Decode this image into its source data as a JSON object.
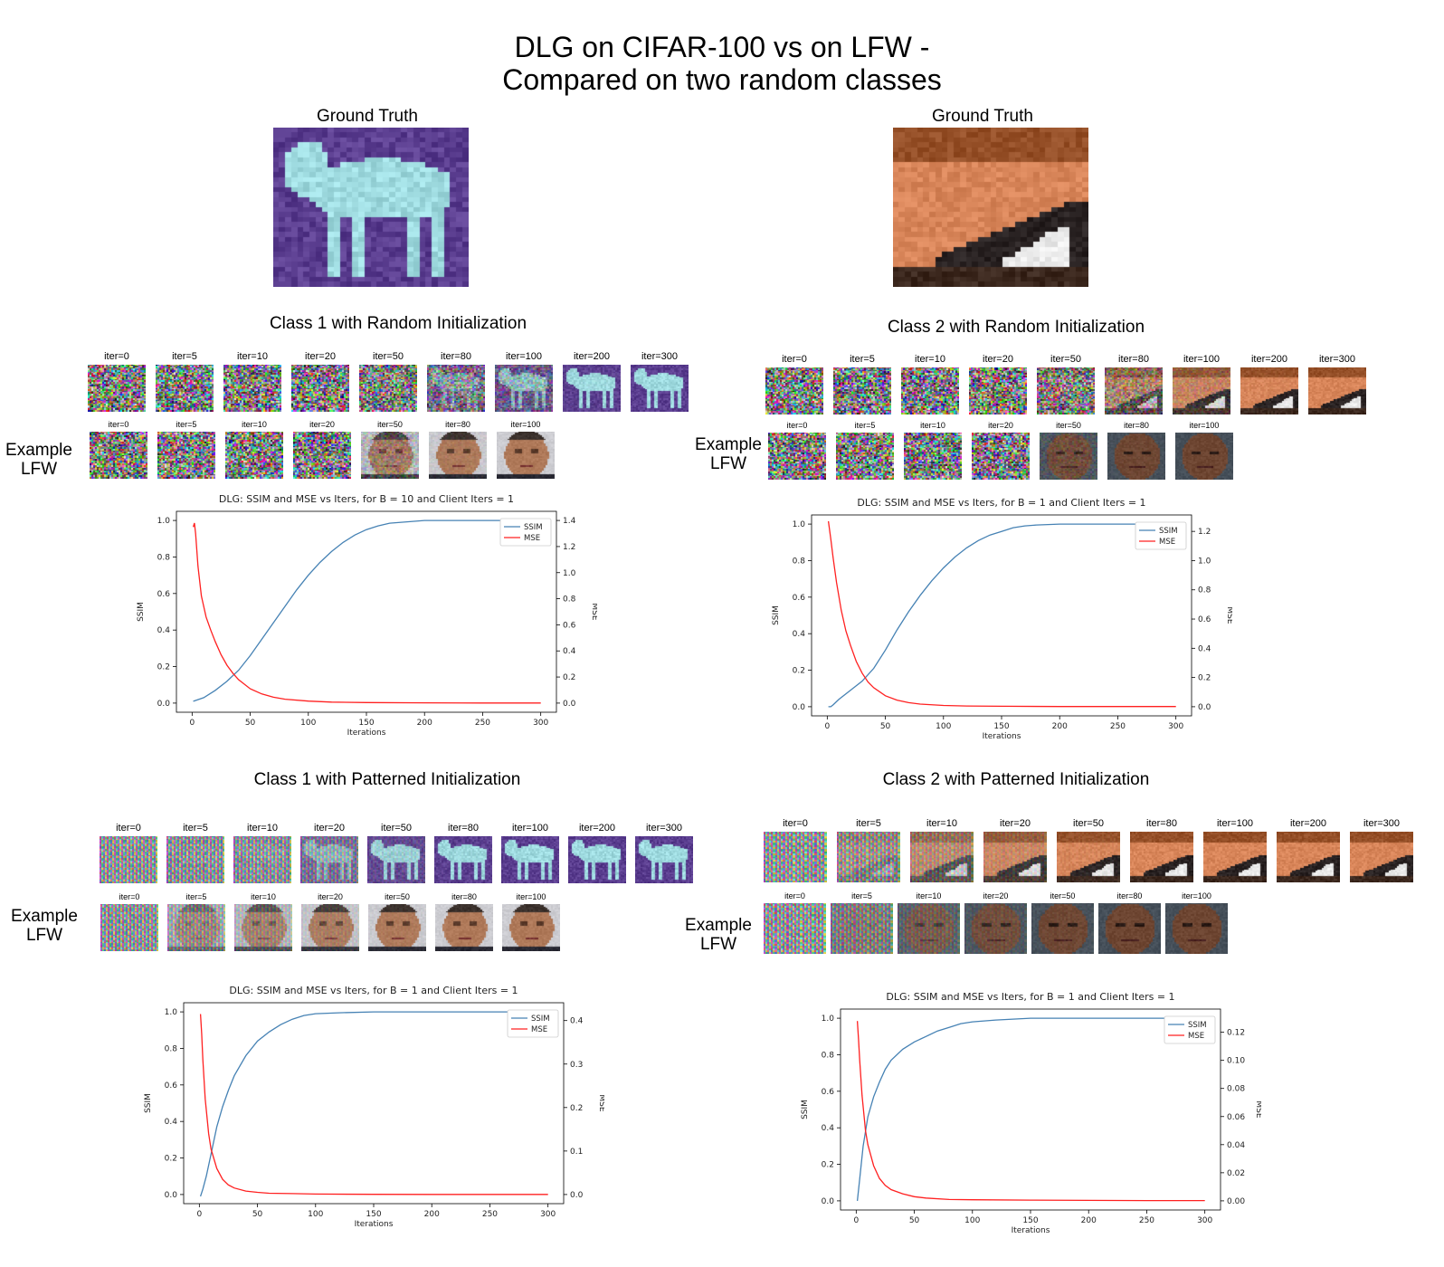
{
  "title_line1": "DLG on CIFAR-100 vs on LFW -",
  "title_line2": "Compared on two random classes",
  "ground_truth_label": "Ground Truth",
  "example_lfw_label_line1": "Example",
  "example_lfw_label_line2": "LFW",
  "panels": [
    {
      "title": "Class 1 with Random Initialization",
      "iters_top": [
        "iter=0",
        "iter=5",
        "iter=10",
        "iter=20",
        "iter=50",
        "iter=80",
        "iter=100",
        "iter=200",
        "iter=300"
      ],
      "iters_bottom": [
        "iter=0",
        "iter=5",
        "iter=10",
        "iter=20",
        "iter=50",
        "iter=80",
        "iter=100"
      ]
    },
    {
      "title": "Class 2 with Random Initialization",
      "iters_top": [
        "iter=0",
        "iter=5",
        "iter=10",
        "iter=20",
        "iter=50",
        "iter=80",
        "iter=100",
        "iter=200",
        "iter=300"
      ],
      "iters_bottom": [
        "iter=0",
        "iter=5",
        "iter=10",
        "iter=20",
        "iter=50",
        "iter=80",
        "iter=100"
      ]
    },
    {
      "title": "Class 1 with Patterned Initialization",
      "iters_top": [
        "iter=0",
        "iter=5",
        "iter=10",
        "iter=20",
        "iter=50",
        "iter=80",
        "iter=100",
        "iter=200",
        "iter=300"
      ],
      "iters_bottom": [
        "iter=0",
        "iter=5",
        "iter=10",
        "iter=20",
        "iter=50",
        "iter=80",
        "iter=100"
      ]
    },
    {
      "title": "Class 2 with Patterned Initialization",
      "iters_top": [
        "iter=0",
        "iter=5",
        "iter=10",
        "iter=20",
        "iter=50",
        "iter=80",
        "iter=100",
        "iter=200",
        "iter=300"
      ],
      "iters_bottom": [
        "iter=0",
        "iter=5",
        "iter=10",
        "iter=20",
        "iter=50",
        "iter=80",
        "iter=100"
      ]
    }
  ],
  "colors": {
    "ssim": "#4682b4",
    "mse": "#ff2020",
    "class1_bg": "#5b3e90",
    "class1_fg": "#9fdbe0",
    "class2_bg": "#d9865a",
    "class2_fg": "#2a2323",
    "face": "#b07a5a",
    "face_dark": "#5a3a2a"
  },
  "chart_data": [
    {
      "type": "line",
      "title": "DLG: SSIM and MSE vs Iters, for B = 10 and Client Iters = 1",
      "xlabel": "Iterations",
      "ylabel": "SSIM",
      "y2label": "MSE",
      "xlim": [
        0,
        300
      ],
      "ylim": [
        0,
        1.0
      ],
      "y2lim": [
        0,
        1.4
      ],
      "xticks": [
        0,
        50,
        100,
        150,
        200,
        250,
        300
      ],
      "yticks": [
        0.0,
        0.2,
        0.4,
        0.6,
        0.8,
        1.0
      ],
      "y2ticks": [
        0.0,
        0.2,
        0.4,
        0.6,
        0.8,
        1.0,
        1.2,
        1.4
      ],
      "legend_position": "top-right",
      "series": [
        {
          "name": "SSIM",
          "axis": "left",
          "x": [
            1,
            10,
            20,
            30,
            40,
            50,
            60,
            70,
            80,
            90,
            100,
            110,
            120,
            130,
            140,
            150,
            160,
            170,
            180,
            190,
            200,
            220,
            250,
            280,
            300
          ],
          "y": [
            0.01,
            0.03,
            0.07,
            0.12,
            0.18,
            0.26,
            0.35,
            0.44,
            0.53,
            0.62,
            0.7,
            0.77,
            0.83,
            0.88,
            0.92,
            0.95,
            0.97,
            0.985,
            0.99,
            0.995,
            1.0,
            1.0,
            1.0,
            1.0,
            1.0
          ]
        },
        {
          "name": "MSE",
          "axis": "right",
          "x": [
            1,
            2,
            3,
            5,
            8,
            12,
            16,
            20,
            25,
            30,
            35,
            40,
            50,
            60,
            70,
            80,
            100,
            120,
            150,
            200,
            250,
            300
          ],
          "y": [
            1.35,
            1.38,
            1.3,
            1.05,
            0.82,
            0.66,
            0.56,
            0.47,
            0.37,
            0.29,
            0.23,
            0.18,
            0.11,
            0.07,
            0.045,
            0.03,
            0.015,
            0.008,
            0.004,
            0.002,
            0.001,
            0.001
          ]
        }
      ]
    },
    {
      "type": "line",
      "title": "DLG: SSIM and MSE vs Iters, for B = 1 and Client Iters = 1",
      "xlabel": "Iterations",
      "ylabel": "SSIM",
      "y2label": "MSE",
      "xlim": [
        0,
        300
      ],
      "ylim": [
        0,
        1.0
      ],
      "y2lim": [
        0,
        1.25
      ],
      "xticks": [
        0,
        50,
        100,
        150,
        200,
        250,
        300
      ],
      "yticks": [
        0.0,
        0.2,
        0.4,
        0.6,
        0.8,
        1.0
      ],
      "y2ticks": [
        0.0,
        0.2,
        0.4,
        0.6,
        0.8,
        1.0,
        1.2
      ],
      "legend_position": "top-right",
      "series": [
        {
          "name": "SSIM",
          "axis": "left",
          "x": [
            1,
            3,
            5,
            10,
            20,
            30,
            40,
            50,
            60,
            70,
            80,
            90,
            100,
            110,
            120,
            130,
            140,
            150,
            160,
            170,
            180,
            200,
            250,
            300
          ],
          "y": [
            0.0,
            0.0,
            0.01,
            0.04,
            0.09,
            0.14,
            0.21,
            0.31,
            0.42,
            0.52,
            0.61,
            0.69,
            0.76,
            0.82,
            0.87,
            0.91,
            0.94,
            0.96,
            0.98,
            0.99,
            0.995,
            1.0,
            1.0,
            1.0
          ]
        },
        {
          "name": "MSE",
          "axis": "right",
          "x": [
            1,
            3,
            5,
            8,
            12,
            16,
            20,
            25,
            30,
            35,
            40,
            50,
            60,
            70,
            80,
            100,
            120,
            150,
            200,
            250,
            300
          ],
          "y": [
            1.27,
            1.15,
            1.02,
            0.85,
            0.66,
            0.52,
            0.42,
            0.31,
            0.23,
            0.17,
            0.13,
            0.075,
            0.045,
            0.028,
            0.018,
            0.009,
            0.005,
            0.003,
            0.001,
            0.001,
            0.001
          ]
        }
      ]
    },
    {
      "type": "line",
      "title": "DLG: SSIM and MSE vs Iters, for B = 1 and Client Iters = 1",
      "xlabel": "Iterations",
      "ylabel": "SSIM",
      "y2label": "MSE",
      "xlim": [
        0,
        300
      ],
      "ylim": [
        0,
        1.0
      ],
      "y2lim": [
        0,
        0.42
      ],
      "xticks": [
        0,
        50,
        100,
        150,
        200,
        250,
        300
      ],
      "yticks": [
        0.0,
        0.2,
        0.4,
        0.6,
        0.8,
        1.0
      ],
      "y2ticks": [
        0.0,
        0.1,
        0.2,
        0.3,
        0.4
      ],
      "legend_position": "top-right",
      "series": [
        {
          "name": "SSIM",
          "axis": "left",
          "x": [
            1,
            3,
            6,
            10,
            15,
            20,
            25,
            30,
            40,
            50,
            60,
            70,
            80,
            90,
            100,
            120,
            150,
            200,
            250,
            300
          ],
          "y": [
            -0.01,
            0.03,
            0.1,
            0.22,
            0.37,
            0.48,
            0.57,
            0.65,
            0.76,
            0.84,
            0.89,
            0.93,
            0.96,
            0.98,
            0.99,
            0.995,
            1.0,
            1.0,
            1.0,
            1.0
          ]
        },
        {
          "name": "MSE",
          "axis": "right",
          "x": [
            1,
            2,
            3,
            5,
            8,
            10,
            15,
            20,
            25,
            30,
            40,
            50,
            60,
            80,
            100,
            150,
            200,
            250,
            300
          ],
          "y": [
            0.415,
            0.37,
            0.31,
            0.22,
            0.14,
            0.105,
            0.06,
            0.035,
            0.022,
            0.015,
            0.008,
            0.005,
            0.003,
            0.002,
            0.001,
            0.0005,
            0.0003,
            0.0002,
            0.0002
          ]
        }
      ]
    },
    {
      "type": "line",
      "title": "DLG: SSIM and MSE vs Iters, for B = 1 and Client Iters = 1",
      "xlabel": "Iterations",
      "ylabel": "SSIM",
      "y2label": "MSE",
      "xlim": [
        0,
        300
      ],
      "ylim": [
        0,
        1.0
      ],
      "y2lim": [
        0,
        0.13
      ],
      "xticks": [
        0,
        50,
        100,
        150,
        200,
        250,
        300
      ],
      "yticks": [
        0.0,
        0.2,
        0.4,
        0.6,
        0.8,
        1.0
      ],
      "y2ticks": [
        0.0,
        0.02,
        0.04,
        0.06,
        0.08,
        0.1,
        0.12
      ],
      "legend_position": "top-right",
      "series": [
        {
          "name": "SSIM",
          "axis": "left",
          "x": [
            1,
            3,
            6,
            10,
            15,
            20,
            25,
            30,
            40,
            50,
            60,
            70,
            80,
            90,
            100,
            120,
            150,
            200,
            250,
            300
          ],
          "y": [
            0.0,
            0.12,
            0.3,
            0.46,
            0.57,
            0.65,
            0.72,
            0.77,
            0.83,
            0.87,
            0.9,
            0.93,
            0.95,
            0.97,
            0.98,
            0.99,
            1.0,
            1.0,
            1.0,
            1.0
          ]
        },
        {
          "name": "MSE",
          "axis": "right",
          "x": [
            1,
            2,
            3,
            5,
            8,
            10,
            15,
            20,
            25,
            30,
            40,
            50,
            60,
            80,
            100,
            150,
            200,
            250,
            300
          ],
          "y": [
            0.128,
            0.115,
            0.1,
            0.075,
            0.05,
            0.04,
            0.025,
            0.016,
            0.011,
            0.008,
            0.005,
            0.003,
            0.002,
            0.001,
            0.0008,
            0.0005,
            0.0003,
            0.0002,
            0.0002
          ]
        }
      ]
    }
  ]
}
